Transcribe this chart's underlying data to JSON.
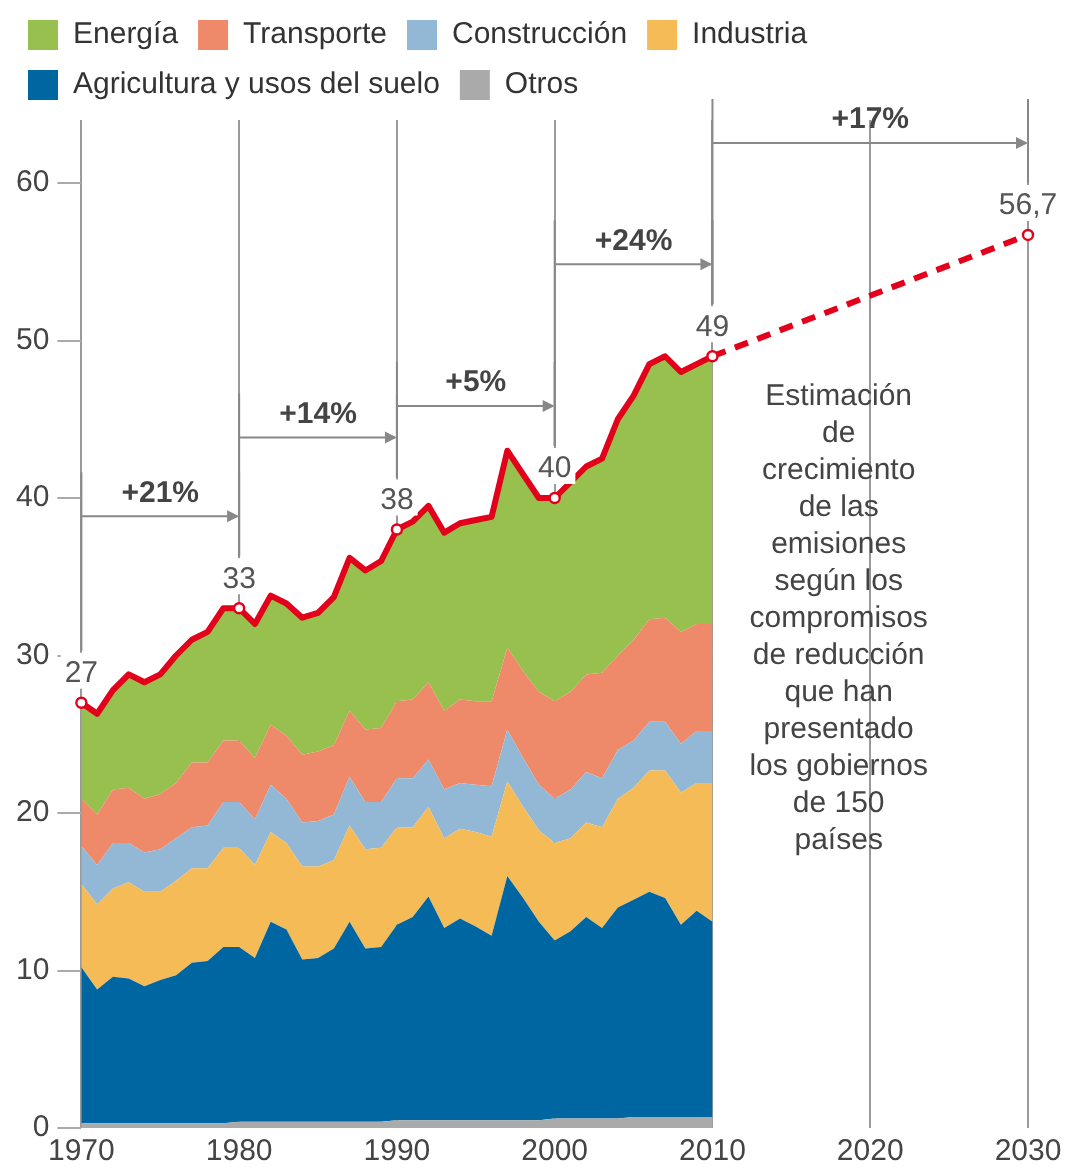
{
  "chart_data": {
    "type": "area",
    "stacked": true,
    "x": [
      1970,
      1971,
      1972,
      1973,
      1974,
      1975,
      1976,
      1977,
      1978,
      1979,
      1980,
      1981,
      1982,
      1983,
      1984,
      1985,
      1986,
      1987,
      1988,
      1989,
      1990,
      1991,
      1992,
      1993,
      1994,
      1995,
      1996,
      1997,
      1998,
      1999,
      2000,
      2001,
      2002,
      2003,
      2004,
      2005,
      2006,
      2007,
      2008,
      2009,
      2010
    ],
    "series": [
      {
        "name": "Otros",
        "color": "#aaaaaa",
        "values": [
          0.3,
          0.3,
          0.3,
          0.3,
          0.3,
          0.3,
          0.3,
          0.3,
          0.3,
          0.3,
          0.4,
          0.4,
          0.4,
          0.4,
          0.4,
          0.4,
          0.4,
          0.4,
          0.4,
          0.4,
          0.5,
          0.5,
          0.5,
          0.5,
          0.5,
          0.5,
          0.5,
          0.5,
          0.5,
          0.5,
          0.6,
          0.6,
          0.6,
          0.6,
          0.6,
          0.7,
          0.7,
          0.7,
          0.7,
          0.7,
          0.7
        ]
      },
      {
        "name": "Agricultura y usos del suelo",
        "color": "#0066a1",
        "values": [
          9.9,
          8.5,
          9.3,
          9.2,
          8.7,
          9.1,
          9.4,
          10.2,
          10.3,
          11.2,
          11.1,
          10.4,
          12.7,
          12.2,
          10.3,
          10.4,
          11.0,
          12.7,
          11.0,
          11.1,
          12.4,
          12.9,
          14.2,
          12.2,
          12.8,
          12.3,
          11.7,
          15.5,
          14.1,
          12.6,
          11.3,
          11.9,
          12.8,
          12.1,
          13.4,
          13.8,
          14.3,
          13.9,
          12.2,
          13.1,
          12.4
        ]
      },
      {
        "name": "Industria",
        "color": "#f5bb57",
        "values": [
          5.3,
          5.4,
          5.6,
          6.1,
          6.0,
          5.6,
          6.0,
          6.0,
          5.9,
          6.3,
          6.3,
          5.9,
          5.7,
          5.5,
          5.9,
          5.8,
          5.6,
          6.1,
          6.3,
          6.3,
          6.2,
          5.7,
          5.7,
          5.7,
          5.7,
          6.0,
          6.3,
          6.0,
          5.8,
          5.8,
          6.2,
          5.9,
          6.0,
          6.4,
          6.9,
          7.1,
          7.7,
          8.1,
          8.4,
          8.1,
          8.8
        ]
      },
      {
        "name": "Construcción",
        "color": "#93b8d6",
        "values": [
          2.4,
          2.5,
          2.9,
          2.5,
          2.5,
          2.7,
          2.7,
          2.6,
          2.7,
          2.9,
          2.9,
          2.9,
          3.0,
          2.8,
          2.8,
          2.9,
          2.9,
          3.1,
          3.0,
          2.9,
          3.1,
          3.1,
          3.0,
          3.1,
          2.9,
          3.0,
          3.2,
          3.3,
          3.1,
          2.9,
          2.8,
          3.1,
          3.2,
          3.1,
          3.1,
          3.0,
          3.1,
          3.1,
          3.1,
          3.3,
          3.3
        ]
      },
      {
        "name": "Transporte",
        "color": "#ee8a6a",
        "values": [
          3.0,
          3.2,
          3.4,
          3.5,
          3.4,
          3.5,
          3.5,
          4.1,
          4.0,
          3.9,
          3.9,
          3.9,
          3.8,
          4.0,
          4.3,
          4.4,
          4.4,
          4.2,
          4.6,
          4.7,
          4.9,
          5.0,
          4.9,
          5.0,
          5.3,
          5.3,
          5.4,
          5.2,
          5.5,
          5.9,
          6.2,
          6.2,
          6.2,
          6.7,
          6.0,
          6.4,
          6.5,
          6.6,
          7.1,
          6.8,
          6.8
        ]
      },
      {
        "name": "Energía",
        "color": "#98c04e",
        "values": [
          6.1,
          6.4,
          6.3,
          7.2,
          7.4,
          7.6,
          8.1,
          7.8,
          8.3,
          8.4,
          8.4,
          8.5,
          8.2,
          8.4,
          8.7,
          8.8,
          9.4,
          9.7,
          10.1,
          10.6,
          10.9,
          11.3,
          11.2,
          11.3,
          11.2,
          11.5,
          11.7,
          12.5,
          12.5,
          12.3,
          12.9,
          13.3,
          13.2,
          13.6,
          15.0,
          15.5,
          16.2,
          16.6,
          16.5,
          16.5,
          17.0
        ]
      },
      {
        "type": "line",
        "color": "#e3001b",
        "values": [
          27,
          26.3,
          27.8,
          28.8,
          28.3,
          28.8,
          30,
          31,
          31.5,
          33,
          33,
          32,
          33.8,
          33.3,
          32.4,
          32.7,
          33.7,
          36.2,
          35.4,
          36,
          38,
          38.5,
          39.5,
          37.8,
          38.4,
          38.6,
          38.8,
          43,
          41.5,
          40,
          40,
          41,
          42,
          42.5,
          45,
          46.5,
          48.5,
          49,
          48,
          48.5,
          49
        ]
      },
      {
        "type": "line",
        "color": "#e3001b",
        "line_style": "dashed",
        "x": [
          2010,
          2030
        ],
        "values": [
          49,
          56.7
        ]
      }
    ],
    "xlim": [
      1970,
      2030
    ],
    "xticks": [
      1970,
      1980,
      1990,
      2000,
      2010,
      2020,
      2030
    ],
    "ylim": [
      0,
      64
    ],
    "yticks": [
      0,
      10,
      20,
      30,
      40,
      50,
      60
    ],
    "grid": "x",
    "legend": "top",
    "annotations": [
      {
        "text": "27",
        "x": 1970,
        "y": 27
      },
      {
        "text": "33",
        "x": 1980,
        "y": 33
      },
      {
        "text": "38",
        "x": 1990,
        "y": 38
      },
      {
        "text": "40",
        "x": 2000,
        "y": 40
      },
      {
        "text": "49",
        "x": 2010,
        "y": 49
      },
      {
        "text": "56,7",
        "x": 2030,
        "y": 56.7
      },
      "+21%",
      "+14%",
      "+5%",
      "+24%",
      "+17%",
      "Estimación de crecimiento de las emisiones según los compromisos de reducción que han presentado los gobiernos de 150 países"
    ]
  }
}
